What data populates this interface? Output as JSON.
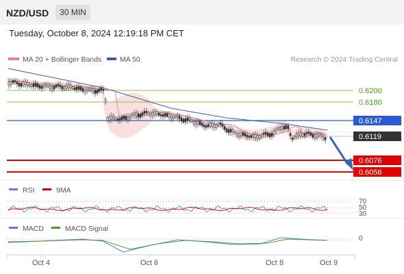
{
  "header": {
    "pair": "NZD/USD",
    "timeframe": "30 MIN"
  },
  "timestamp": "Tuesday, October 8, 2024 12:19:18 PM CET",
  "legend": {
    "ma20_bb": "MA 20 + Bollinger Bands",
    "ma50": "MA 50",
    "credit": "Research © 2024 Trading Central"
  },
  "levels": {
    "r2": "0.6200",
    "r1": "0.6180",
    "pivot": "0.6147",
    "last": "0.6119",
    "s1": "0.6076",
    "s2": "0.6056"
  },
  "rsi": {
    "label": "RSI",
    "ma_label": "9MA",
    "ticks": [
      "70",
      "50",
      "30"
    ]
  },
  "macd": {
    "label": "MACD",
    "signal_label": "MACD Signal",
    "zero": "0"
  },
  "xaxis": {
    "ticks": [
      "Oct 4",
      "Oct 6",
      "Oct 8",
      "Oct 9"
    ]
  },
  "colors": {
    "candle": "#333333",
    "bb": "#f4c5c5",
    "ma20": "#f08080",
    "ma50": "#3a5ba8",
    "resistance": "#8cc63f",
    "pivot": "#2a5bd7",
    "support": "#e00000",
    "arrow": "#3866b0",
    "rsi": "#5b7fd8",
    "rsi_ma": "#cc0000",
    "macd": "#5b7fd8",
    "macd_signal": "#4c9a2a"
  }
}
